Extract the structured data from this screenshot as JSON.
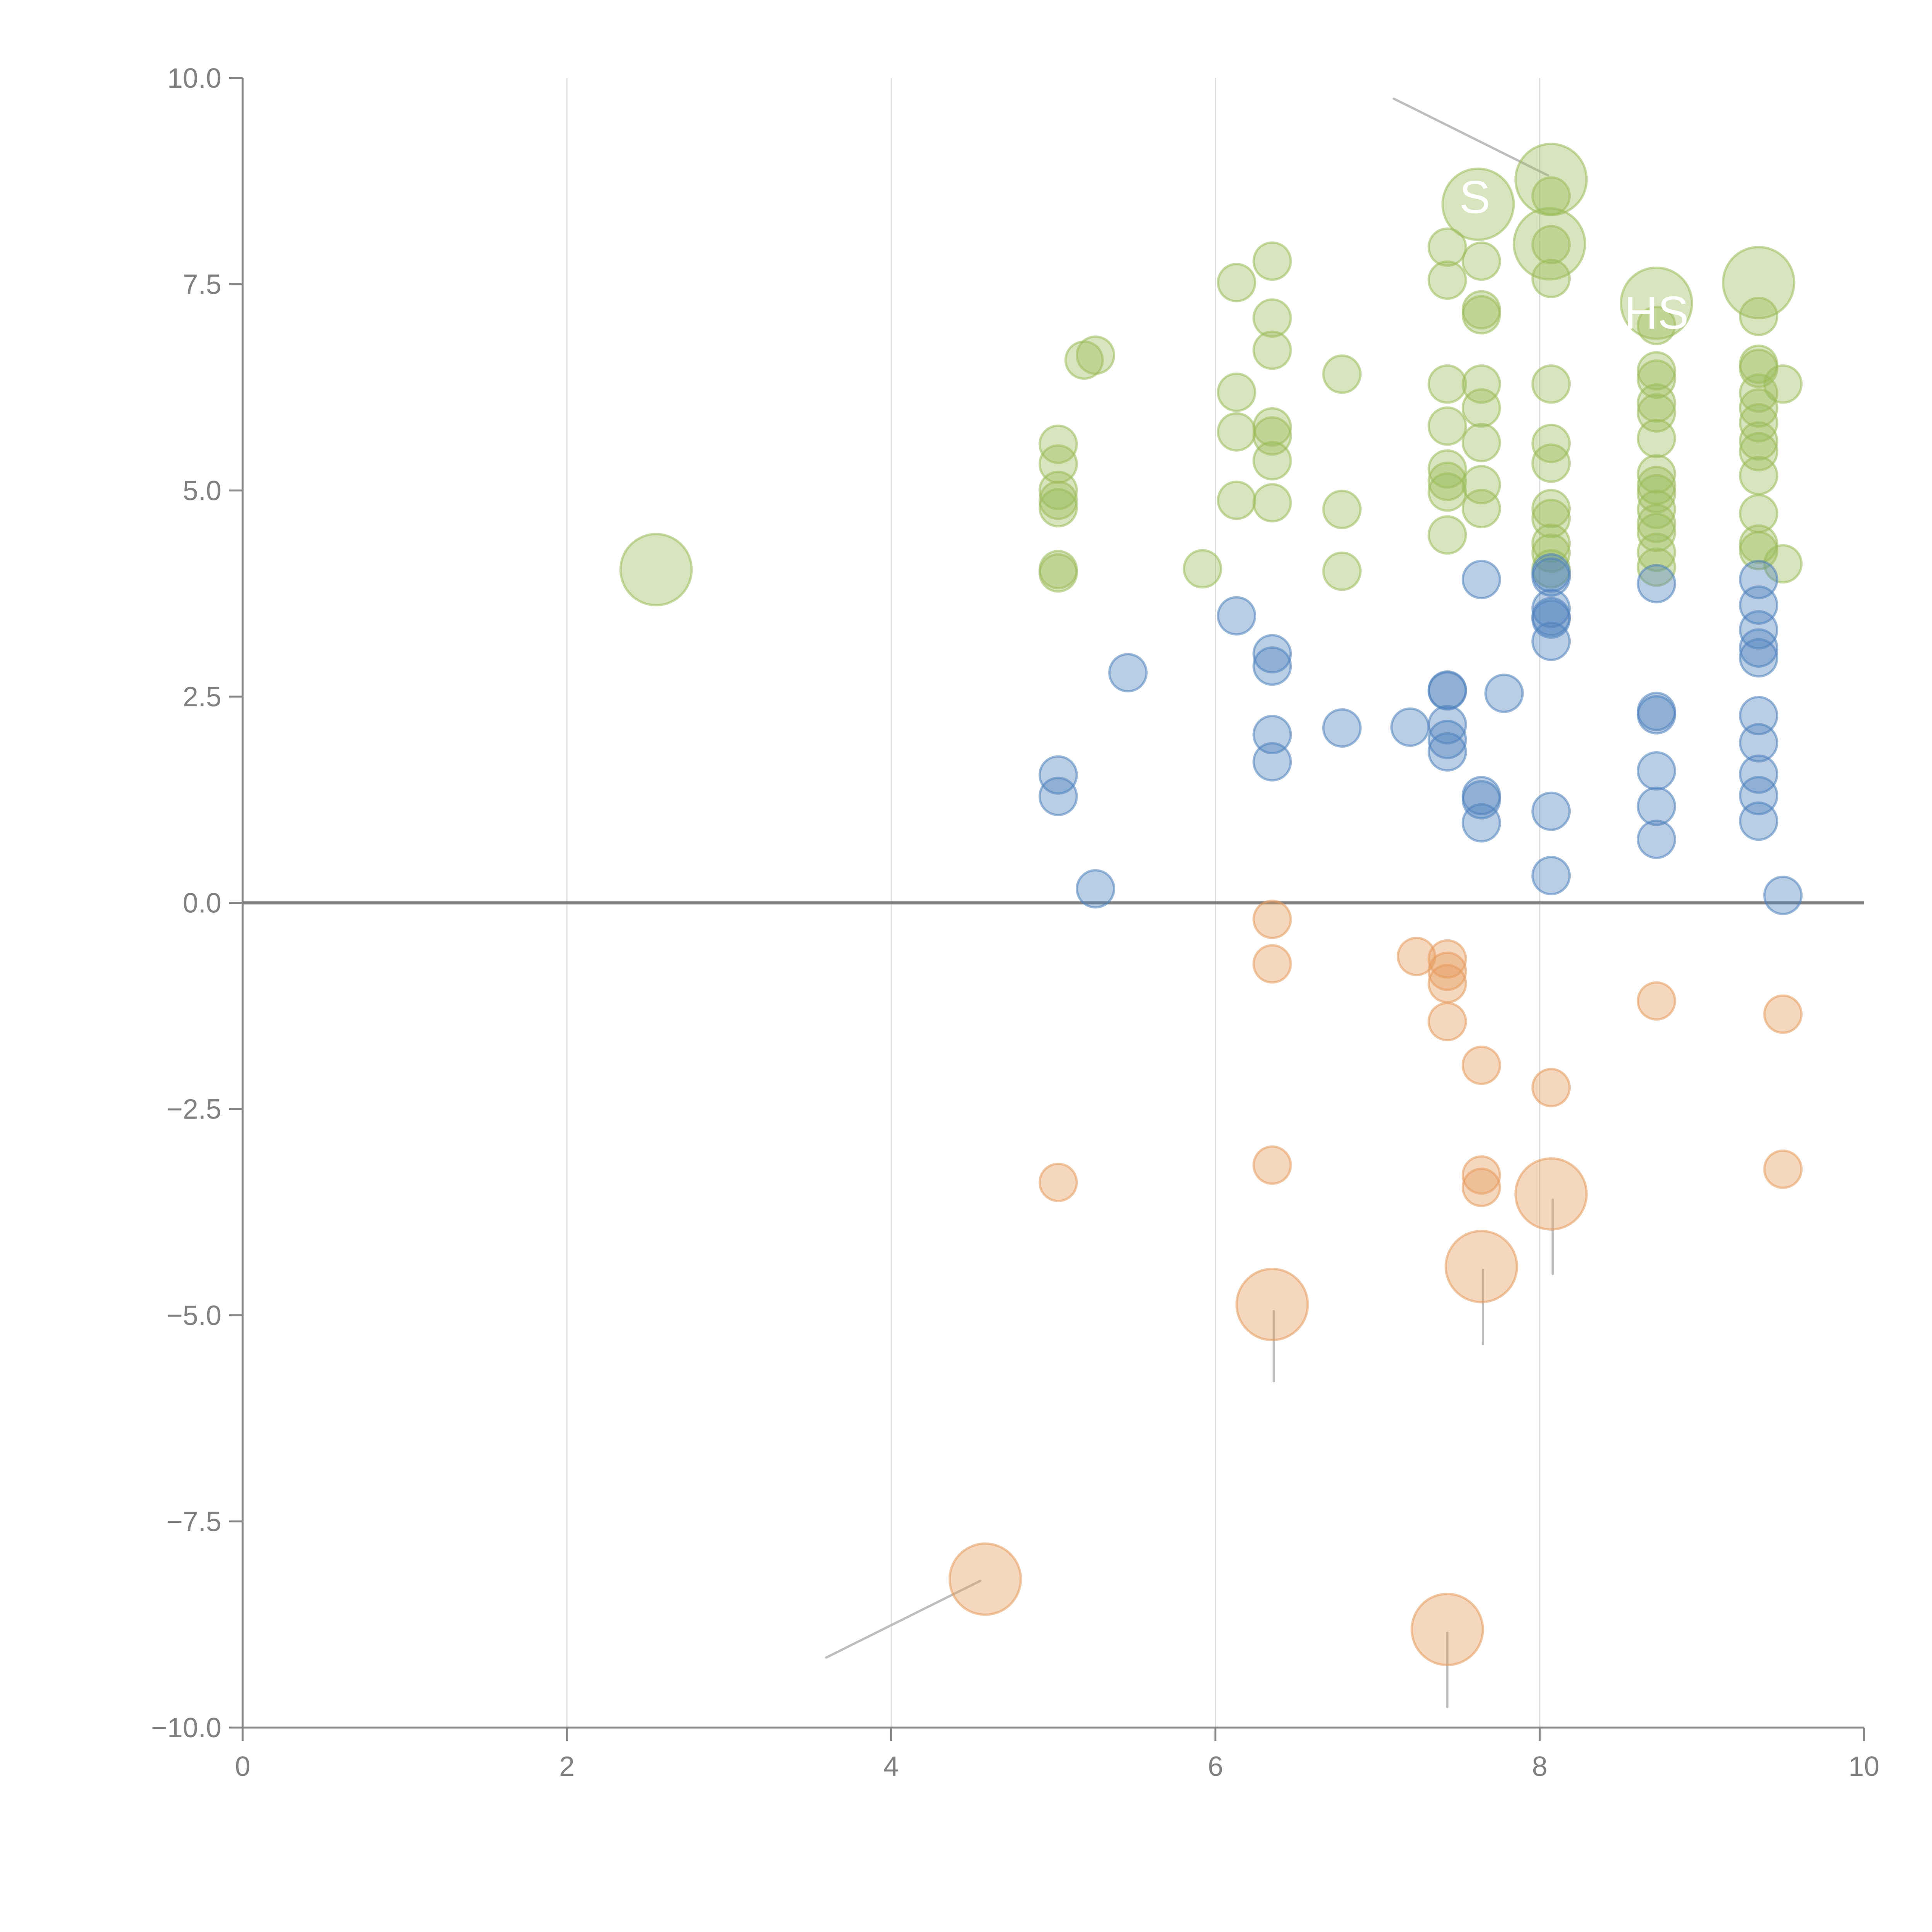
{
  "chart_data": {
    "type": "scatter",
    "variant": "bubble",
    "title": "",
    "xlabel": "",
    "ylabel": "",
    "xlim": [
      0,
      10
    ],
    "ylim": [
      -10,
      10
    ],
    "x_ticks": [
      "0",
      "2",
      "4",
      "6",
      "8",
      "10"
    ],
    "y_ticks": [
      "10.0",
      "7.5",
      "5.0",
      "2.5",
      "0.0",
      "−2.5",
      "−5.0",
      "−7.5",
      "−10.0"
    ],
    "x_tick_values": [
      0,
      2,
      4,
      6,
      8,
      10
    ],
    "y_tick_values": [
      10,
      7.5,
      5,
      2.5,
      0,
      -2.5,
      -5,
      -7.5,
      -10
    ],
    "grid": "vertical",
    "zero_line": true,
    "legend": "none",
    "series": [
      {
        "name": "green",
        "color": "#9bbb59",
        "points": [
          {
            "x": 2.55,
            "y": 4.04,
            "size": 3
          },
          {
            "x": 5.03,
            "y": 4.0,
            "size": 1
          },
          {
            "x": 5.03,
            "y": 4.04,
            "size": 1
          },
          {
            "x": 5.03,
            "y": 4.79,
            "size": 1
          },
          {
            "x": 5.03,
            "y": 4.88,
            "size": 1
          },
          {
            "x": 5.03,
            "y": 5.0,
            "size": 1
          },
          {
            "x": 5.03,
            "y": 5.32,
            "size": 1
          },
          {
            "x": 5.03,
            "y": 5.56,
            "size": 1
          },
          {
            "x": 5.19,
            "y": 6.58,
            "size": 1
          },
          {
            "x": 5.26,
            "y": 6.64,
            "size": 1
          },
          {
            "x": 5.92,
            "y": 4.05,
            "size": 1
          },
          {
            "x": 6.13,
            "y": 7.52,
            "size": 1
          },
          {
            "x": 6.13,
            "y": 6.19,
            "size": 1
          },
          {
            "x": 6.13,
            "y": 5.71,
            "size": 1
          },
          {
            "x": 6.13,
            "y": 4.88,
            "size": 1
          },
          {
            "x": 6.35,
            "y": 7.78,
            "size": 1
          },
          {
            "x": 6.35,
            "y": 7.09,
            "size": 1
          },
          {
            "x": 6.35,
            "y": 6.7,
            "size": 1
          },
          {
            "x": 6.35,
            "y": 5.77,
            "size": 1
          },
          {
            "x": 6.35,
            "y": 5.66,
            "size": 1
          },
          {
            "x": 6.35,
            "y": 5.36,
            "size": 1
          },
          {
            "x": 6.35,
            "y": 4.85,
            "size": 1
          },
          {
            "x": 6.78,
            "y": 6.41,
            "size": 1
          },
          {
            "x": 6.78,
            "y": 4.77,
            "size": 1
          },
          {
            "x": 6.78,
            "y": 4.02,
            "size": 1
          },
          {
            "x": 7.43,
            "y": 7.95,
            "size": 1
          },
          {
            "x": 7.43,
            "y": 7.55,
            "size": 1
          },
          {
            "x": 7.43,
            "y": 6.29,
            "size": 1
          },
          {
            "x": 7.43,
            "y": 5.78,
            "size": 1
          },
          {
            "x": 7.43,
            "y": 5.26,
            "size": 1
          },
          {
            "x": 7.43,
            "y": 5.11,
            "size": 1
          },
          {
            "x": 7.43,
            "y": 4.98,
            "size": 1
          },
          {
            "x": 7.43,
            "y": 4.46,
            "size": 1
          },
          {
            "x": 7.62,
            "y": 8.47,
            "size": 3
          },
          {
            "x": 7.64,
            "y": 7.78,
            "size": 1
          },
          {
            "x": 7.64,
            "y": 7.19,
            "size": 1
          },
          {
            "x": 7.64,
            "y": 7.13,
            "size": 1
          },
          {
            "x": 7.64,
            "y": 6.29,
            "size": 1
          },
          {
            "x": 7.64,
            "y": 6.0,
            "size": 1
          },
          {
            "x": 7.64,
            "y": 5.58,
            "size": 1
          },
          {
            "x": 7.64,
            "y": 5.07,
            "size": 1
          },
          {
            "x": 7.64,
            "y": 4.78,
            "size": 1
          },
          {
            "x": 8.07,
            "y": 8.77,
            "size": 3
          },
          {
            "x": 8.06,
            "y": 7.99,
            "size": 3
          },
          {
            "x": 8.07,
            "y": 8.57,
            "size": 1
          },
          {
            "x": 8.07,
            "y": 7.98,
            "size": 1
          },
          {
            "x": 8.07,
            "y": 7.57,
            "size": 1
          },
          {
            "x": 8.07,
            "y": 6.29,
            "size": 1
          },
          {
            "x": 8.07,
            "y": 5.57,
            "size": 1
          },
          {
            "x": 8.07,
            "y": 5.33,
            "size": 1
          },
          {
            "x": 8.07,
            "y": 4.78,
            "size": 1
          },
          {
            "x": 8.07,
            "y": 4.66,
            "size": 1
          },
          {
            "x": 8.07,
            "y": 4.36,
            "size": 1
          },
          {
            "x": 8.07,
            "y": 4.24,
            "size": 1
          },
          {
            "x": 8.07,
            "y": 4.05,
            "size": 1
          },
          {
            "x": 8.72,
            "y": 7.27,
            "size": 3
          },
          {
            "x": 8.72,
            "y": 7.0,
            "size": 1
          },
          {
            "x": 8.72,
            "y": 6.45,
            "size": 1
          },
          {
            "x": 8.72,
            "y": 6.35,
            "size": 1
          },
          {
            "x": 8.72,
            "y": 6.06,
            "size": 1
          },
          {
            "x": 8.72,
            "y": 5.94,
            "size": 1
          },
          {
            "x": 8.72,
            "y": 5.63,
            "size": 1
          },
          {
            "x": 8.72,
            "y": 5.2,
            "size": 1
          },
          {
            "x": 8.72,
            "y": 5.06,
            "size": 1
          },
          {
            "x": 8.72,
            "y": 4.96,
            "size": 1
          },
          {
            "x": 8.72,
            "y": 4.77,
            "size": 1
          },
          {
            "x": 8.72,
            "y": 4.6,
            "size": 1
          },
          {
            "x": 8.72,
            "y": 4.49,
            "size": 1
          },
          {
            "x": 8.72,
            "y": 4.25,
            "size": 1
          },
          {
            "x": 8.72,
            "y": 4.07,
            "size": 1
          },
          {
            "x": 9.35,
            "y": 7.52,
            "size": 3
          },
          {
            "x": 9.35,
            "y": 7.11,
            "size": 1
          },
          {
            "x": 9.35,
            "y": 6.53,
            "size": 1
          },
          {
            "x": 9.35,
            "y": 6.48,
            "size": 1
          },
          {
            "x": 9.35,
            "y": 6.18,
            "size": 1
          },
          {
            "x": 9.35,
            "y": 6.0,
            "size": 1
          },
          {
            "x": 9.35,
            "y": 5.82,
            "size": 1
          },
          {
            "x": 9.35,
            "y": 5.6,
            "size": 1
          },
          {
            "x": 9.35,
            "y": 5.47,
            "size": 1
          },
          {
            "x": 9.35,
            "y": 5.18,
            "size": 1
          },
          {
            "x": 9.35,
            "y": 4.72,
            "size": 1
          },
          {
            "x": 9.35,
            "y": 4.35,
            "size": 1
          },
          {
            "x": 9.35,
            "y": 4.27,
            "size": 1
          },
          {
            "x": 9.5,
            "y": 6.29,
            "size": 1
          },
          {
            "x": 9.5,
            "y": 4.11,
            "size": 1
          }
        ]
      },
      {
        "name": "blue",
        "color": "#4f81bd",
        "points": [
          {
            "x": 5.03,
            "y": 1.55,
            "size": 1
          },
          {
            "x": 5.03,
            "y": 1.29,
            "size": 1
          },
          {
            "x": 5.26,
            "y": 0.17,
            "size": 1
          },
          {
            "x": 5.46,
            "y": 2.79,
            "size": 1
          },
          {
            "x": 6.13,
            "y": 3.48,
            "size": 1
          },
          {
            "x": 6.35,
            "y": 3.02,
            "size": 1
          },
          {
            "x": 6.35,
            "y": 2.87,
            "size": 1
          },
          {
            "x": 6.35,
            "y": 2.04,
            "size": 1
          },
          {
            "x": 6.35,
            "y": 1.71,
            "size": 1
          },
          {
            "x": 6.78,
            "y": 2.12,
            "size": 1
          },
          {
            "x": 7.2,
            "y": 2.13,
            "size": 1
          },
          {
            "x": 7.43,
            "y": 2.58,
            "size": 1
          },
          {
            "x": 7.43,
            "y": 2.57,
            "size": 1
          },
          {
            "x": 7.43,
            "y": 2.16,
            "size": 1
          },
          {
            "x": 7.43,
            "y": 1.98,
            "size": 1
          },
          {
            "x": 7.43,
            "y": 1.83,
            "size": 1
          },
          {
            "x": 7.64,
            "y": 3.92,
            "size": 1
          },
          {
            "x": 7.64,
            "y": 1.3,
            "size": 1
          },
          {
            "x": 7.64,
            "y": 1.25,
            "size": 1
          },
          {
            "x": 7.64,
            "y": 0.97,
            "size": 1
          },
          {
            "x": 7.78,
            "y": 2.54,
            "size": 1
          },
          {
            "x": 8.07,
            "y": 4.0,
            "size": 1
          },
          {
            "x": 8.07,
            "y": 3.95,
            "size": 1
          },
          {
            "x": 8.07,
            "y": 3.57,
            "size": 1
          },
          {
            "x": 8.07,
            "y": 3.47,
            "size": 1
          },
          {
            "x": 8.07,
            "y": 3.44,
            "size": 1
          },
          {
            "x": 8.07,
            "y": 3.17,
            "size": 1
          },
          {
            "x": 8.07,
            "y": 1.11,
            "size": 1
          },
          {
            "x": 8.07,
            "y": 0.33,
            "size": 1
          },
          {
            "x": 8.72,
            "y": 3.87,
            "size": 1
          },
          {
            "x": 8.72,
            "y": 2.32,
            "size": 1
          },
          {
            "x": 8.72,
            "y": 2.28,
            "size": 1
          },
          {
            "x": 8.72,
            "y": 1.6,
            "size": 1
          },
          {
            "x": 8.72,
            "y": 1.17,
            "size": 1
          },
          {
            "x": 8.72,
            "y": 0.77,
            "size": 1
          },
          {
            "x": 9.35,
            "y": 3.92,
            "size": 1
          },
          {
            "x": 9.35,
            "y": 3.61,
            "size": 1
          },
          {
            "x": 9.35,
            "y": 3.31,
            "size": 1
          },
          {
            "x": 9.35,
            "y": 3.09,
            "size": 1
          },
          {
            "x": 9.35,
            "y": 2.97,
            "size": 1
          },
          {
            "x": 9.35,
            "y": 2.27,
            "size": 1
          },
          {
            "x": 9.35,
            "y": 1.94,
            "size": 1
          },
          {
            "x": 9.35,
            "y": 1.56,
            "size": 1
          },
          {
            "x": 9.35,
            "y": 1.3,
            "size": 1
          },
          {
            "x": 9.35,
            "y": 0.99,
            "size": 1
          },
          {
            "x": 9.5,
            "y": 0.09,
            "size": 1
          }
        ]
      },
      {
        "name": "orange",
        "color": "#e69a5c",
        "points": [
          {
            "x": 4.58,
            "y": -8.2,
            "size": 3
          },
          {
            "x": 5.03,
            "y": -3.39,
            "size": 1
          },
          {
            "x": 6.35,
            "y": -0.2,
            "size": 1
          },
          {
            "x": 6.35,
            "y": -0.74,
            "size": 1
          },
          {
            "x": 6.35,
            "y": -3.18,
            "size": 1
          },
          {
            "x": 6.35,
            "y": -4.87,
            "size": 3
          },
          {
            "x": 7.24,
            "y": -0.65,
            "size": 1
          },
          {
            "x": 7.43,
            "y": -0.68,
            "size": 1
          },
          {
            "x": 7.43,
            "y": -0.83,
            "size": 1
          },
          {
            "x": 7.43,
            "y": -0.98,
            "size": 1
          },
          {
            "x": 7.43,
            "y": -1.44,
            "size": 1
          },
          {
            "x": 7.43,
            "y": -8.81,
            "size": 3
          },
          {
            "x": 7.64,
            "y": -1.97,
            "size": 1
          },
          {
            "x": 7.64,
            "y": -3.3,
            "size": 1
          },
          {
            "x": 7.64,
            "y": -3.45,
            "size": 1
          },
          {
            "x": 7.64,
            "y": -4.41,
            "size": 3
          },
          {
            "x": 8.07,
            "y": -2.24,
            "size": 1
          },
          {
            "x": 8.07,
            "y": -3.53,
            "size": 3
          },
          {
            "x": 8.72,
            "y": -1.19,
            "size": 1
          },
          {
            "x": 9.5,
            "y": -1.35,
            "size": 1
          },
          {
            "x": 9.5,
            "y": -3.23,
            "size": 1
          }
        ]
      }
    ],
    "leader_lines": [
      {
        "from": [
          7.1,
          9.75
        ],
        "to": [
          8.05,
          8.82
        ],
        "color": "#b3b3b3"
      },
      {
        "from": [
          7.45,
          8.55
        ],
        "to": [
          8.05,
          8.0
        ],
        "color": "#ffffff"
      },
      {
        "from": [
          2.62,
          4.1
        ],
        "to": [
          2.8,
          4.3
        ],
        "color": "#ffffff"
      },
      {
        "from": [
          9.36,
          7.55
        ],
        "to": [
          9.38,
          7.9
        ],
        "color": "#ffffff"
      },
      {
        "from": [
          4.55,
          -8.22
        ],
        "to": [
          3.6,
          -9.15
        ],
        "color": "#b3b3b3"
      },
      {
        "from": [
          6.36,
          -4.95
        ],
        "to": [
          6.36,
          -5.8
        ],
        "color": "#b3b3b3"
      },
      {
        "from": [
          7.65,
          -4.45
        ],
        "to": [
          7.65,
          -5.35
        ],
        "color": "#b3b3b3"
      },
      {
        "from": [
          8.08,
          -3.6
        ],
        "to": [
          8.08,
          -4.5
        ],
        "color": "#b3b3b3"
      },
      {
        "from": [
          7.43,
          -8.85
        ],
        "to": [
          7.43,
          -9.75
        ],
        "color": "#b3b3b3"
      }
    ],
    "annotations": [
      {
        "text": "S",
        "x": 7.6,
        "y": 8.55
      },
      {
        "text": "HS",
        "x": 8.72,
        "y": 7.15
      }
    ]
  }
}
